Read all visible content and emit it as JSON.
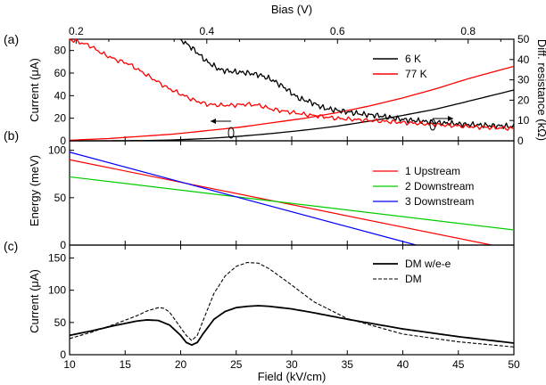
{
  "chart_data": [
    {
      "id": "a",
      "type": "line",
      "panel_label": "(a)",
      "xlabel_top": "Bias (V)",
      "xlim_top": [
        0.19,
        0.87
      ],
      "xticks_top": [
        "0.2",
        "0.4",
        "0.6",
        "0.8"
      ],
      "ylabel": "Current (μA)",
      "ylim": [
        0,
        90
      ],
      "yticks": [
        "0",
        "20",
        "40",
        "60",
        "80"
      ],
      "ylabel_right": "Diff. resistance (kΩ)",
      "ylim_right": [
        0,
        50
      ],
      "yticks_right": [
        "0",
        "10",
        "20",
        "30",
        "40",
        "50"
      ],
      "legend_position": "top-right",
      "series": [
        {
          "name": "6 K",
          "axis": "left",
          "color": "#000000",
          "x": [
            0.19,
            0.25,
            0.3,
            0.35,
            0.4,
            0.45,
            0.5,
            0.55,
            0.6,
            0.65,
            0.7,
            0.75,
            0.8,
            0.87
          ],
          "y": [
            0,
            0,
            0.2,
            0.8,
            2,
            4,
            6.5,
            9.5,
            13,
            17.5,
            22.5,
            28,
            35,
            45
          ]
        },
        {
          "name": "77 K",
          "axis": "left",
          "color": "#ff0000",
          "x": [
            0.19,
            0.25,
            0.3,
            0.35,
            0.4,
            0.45,
            0.5,
            0.55,
            0.6,
            0.65,
            0.7,
            0.75,
            0.8,
            0.87
          ],
          "y": [
            0.5,
            2,
            4,
            6,
            9,
            12,
            16,
            20,
            25,
            31,
            38,
            46,
            55,
            66
          ]
        },
        {
          "name": "6 K",
          "axis": "right",
          "color": "#000000",
          "style": "noisy",
          "x": [
            0.36,
            0.38,
            0.4,
            0.42,
            0.44,
            0.46,
            0.48,
            0.5,
            0.52,
            0.54,
            0.56,
            0.58,
            0.6,
            0.62,
            0.64,
            0.66,
            0.7,
            0.75,
            0.8,
            0.87
          ],
          "y": [
            50,
            45,
            39,
            35,
            34,
            33.5,
            32.5,
            30,
            26,
            21,
            19,
            16,
            15,
            14,
            13,
            12.5,
            10.5,
            9,
            8,
            7
          ]
        },
        {
          "name": "77 K",
          "axis": "right",
          "color": "#ff0000",
          "style": "noisy",
          "x": [
            0.19,
            0.2,
            0.22,
            0.24,
            0.26,
            0.28,
            0.3,
            0.32,
            0.34,
            0.36,
            0.38,
            0.4,
            0.42,
            0.44,
            0.46,
            0.48,
            0.5,
            0.55,
            0.6,
            0.65,
            0.7,
            0.75,
            0.8,
            0.87
          ],
          "y": [
            50,
            49,
            47,
            43,
            40,
            38,
            34,
            30,
            26,
            23,
            20,
            18,
            17.5,
            17.5,
            18,
            17.5,
            15.5,
            13,
            11,
            10,
            9,
            8,
            7,
            6
          ]
        }
      ]
    },
    {
      "id": "b",
      "type": "line",
      "panel_label": "(b)",
      "ylabel": "Energy (meV)",
      "xlim": [
        10,
        50
      ],
      "ylim": [
        0,
        110
      ],
      "yticks": [
        "0",
        "50",
        "100"
      ],
      "legend_position": "top-right",
      "series": [
        {
          "name": "1 Upstream",
          "color": "#ff0000",
          "x": [
            10,
            48
          ],
          "y": [
            90,
            0
          ]
        },
        {
          "name": "2 Downstream",
          "color": "#00cc00",
          "x": [
            10,
            50
          ],
          "y": [
            72,
            16
          ]
        },
        {
          "name": "3 Downstream",
          "color": "#0000ff",
          "x": [
            10,
            41.2
          ],
          "y": [
            98,
            0
          ]
        }
      ]
    },
    {
      "id": "c",
      "type": "line",
      "panel_label": "(c)",
      "xlabel": "Field (kV/cm)",
      "ylabel": "Current (μA)",
      "xlim": [
        10,
        50
      ],
      "xticks": [
        "10",
        "15",
        "20",
        "25",
        "30",
        "35",
        "40",
        "45",
        "50"
      ],
      "ylim": [
        0,
        170
      ],
      "yticks": [
        "0",
        "50",
        "100",
        "150"
      ],
      "legend_position": "top-right",
      "series": [
        {
          "name": "DM w/e-e",
          "color": "#000000",
          "dash": "solid",
          "x": [
            10,
            12,
            14,
            16,
            17,
            18,
            19,
            20,
            20.5,
            21,
            21.5,
            22,
            23,
            24,
            25,
            26,
            27,
            28,
            30,
            32,
            35,
            40,
            45,
            50
          ],
          "y": [
            30,
            37,
            45,
            52,
            54,
            53,
            46,
            30,
            19,
            15,
            19,
            32,
            55,
            67,
            73,
            75,
            76,
            75,
            71,
            65,
            55,
            40,
            28,
            18
          ]
        },
        {
          "name": "DM",
          "color": "#000000",
          "dash": "dashed",
          "x": [
            10,
            12,
            14,
            16,
            17,
            18,
            18.5,
            19,
            20,
            20.5,
            21,
            21.5,
            22,
            23,
            24,
            25,
            26,
            27,
            28,
            30,
            32,
            35,
            40,
            45,
            50
          ],
          "y": [
            25,
            35,
            47,
            60,
            68,
            73,
            72,
            66,
            42,
            30,
            22,
            30,
            52,
            95,
            122,
            137,
            143,
            142,
            133,
            108,
            82,
            56,
            32,
            20,
            12
          ]
        }
      ]
    }
  ]
}
